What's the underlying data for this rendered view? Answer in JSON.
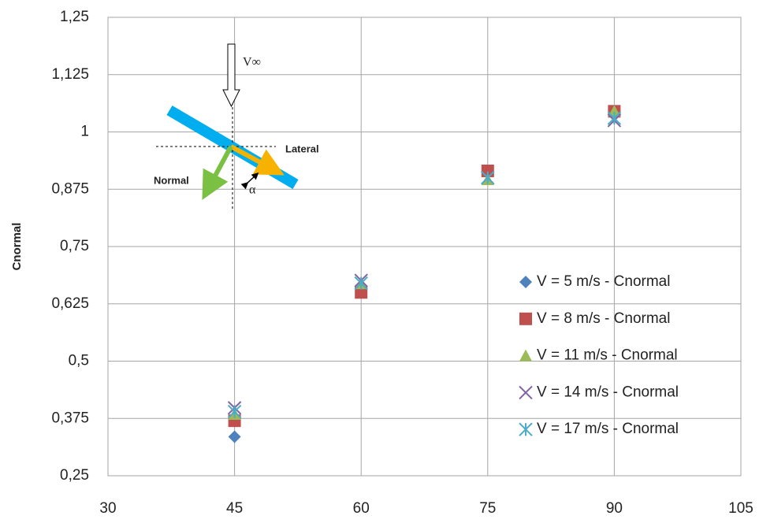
{
  "chart_data": {
    "type": "scatter",
    "y_label": "Cnormal",
    "x": [
      45,
      60,
      75,
      90
    ],
    "series": [
      {
        "name": "V = 5 m/s - Cnormal",
        "color": "#4f81bd",
        "marker": "diamond",
        "values": [
          0.335,
          0.66,
          0.915,
          1.045
        ]
      },
      {
        "name": "V = 8 m/s - Cnormal",
        "color": "#c0504d",
        "marker": "square",
        "values": [
          0.37,
          0.65,
          0.915,
          1.045
        ]
      },
      {
        "name": "V = 11 m/s - Cnormal",
        "color": "#9bbb59",
        "marker": "triangle",
        "values": [
          0.384,
          0.669,
          0.896,
          1.045
        ]
      },
      {
        "name": "V = 14 m/s - Cnormal",
        "color": "#8064a2",
        "marker": "x",
        "values": [
          0.398,
          0.676,
          0.9,
          1.025
        ]
      },
      {
        "name": "V = 17 m/s - Cnormal",
        "color": "#4bacc6",
        "marker": "star",
        "values": [
          0.39,
          0.67,
          0.9,
          1.03
        ]
      }
    ],
    "xlim": [
      30,
      105
    ],
    "xticks": [
      30,
      45,
      60,
      75,
      90,
      105
    ],
    "ylim": [
      0.25,
      1.25
    ],
    "yticks": [
      {
        "value": 0.25,
        "label": "0,25"
      },
      {
        "value": 0.375,
        "label": "0,375"
      },
      {
        "value": 0.5,
        "label": "0,5"
      },
      {
        "value": 0.625,
        "label": "0,625"
      },
      {
        "value": 0.75,
        "label": "0,75"
      },
      {
        "value": 0.875,
        "label": "0,875"
      },
      1,
      {
        "value": 1.125,
        "label": "1,125"
      },
      {
        "value": 1.25,
        "label": "1,25"
      }
    ],
    "grid": true,
    "annotations": [
      "V∞",
      "Lateral",
      "Normal",
      "α"
    ]
  }
}
